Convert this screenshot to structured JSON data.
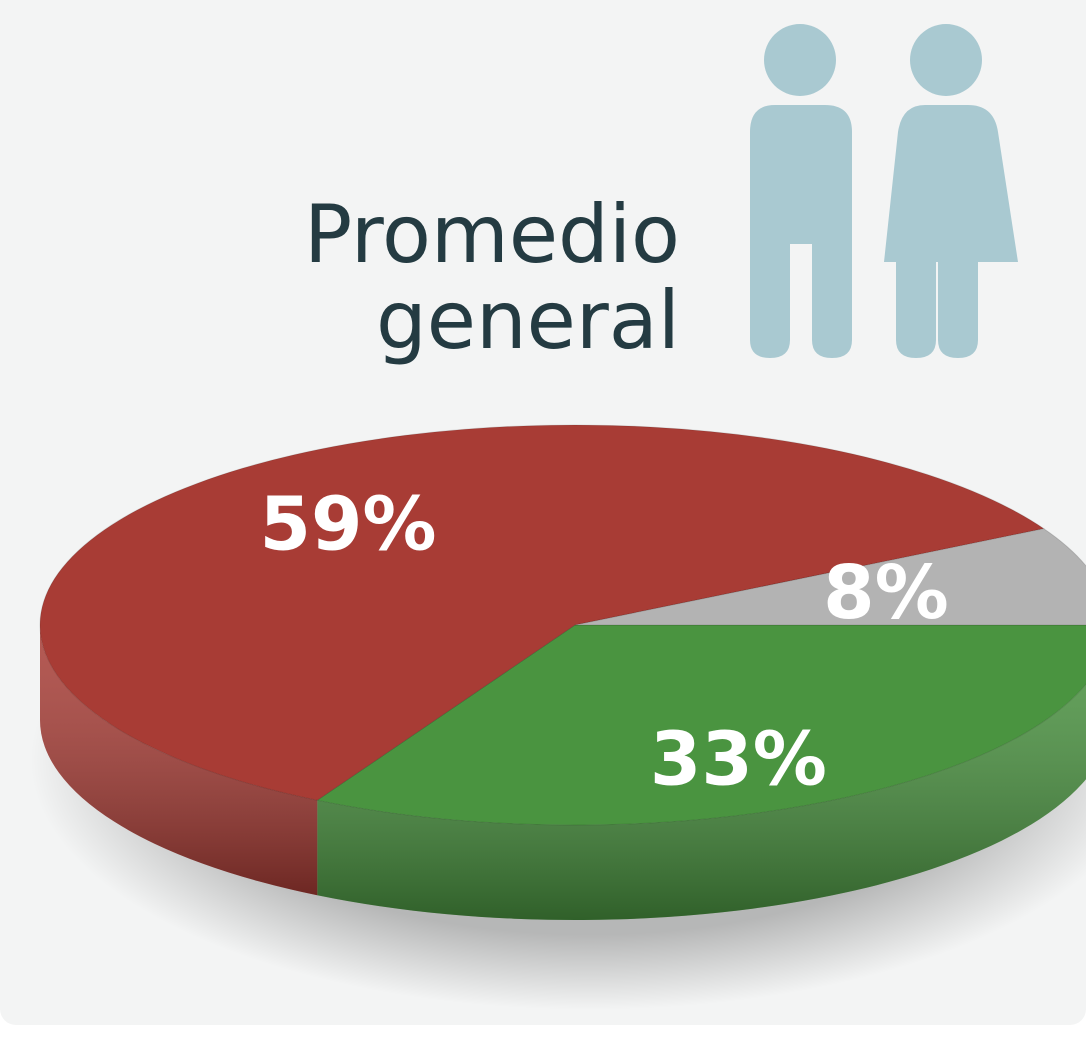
{
  "chart_data": {
    "type": "pie3d",
    "title": "Promedio general",
    "values": [
      33,
      59,
      8
    ],
    "value_labels": [
      "33%",
      "59%",
      "8%"
    ],
    "colors": [
      "#4a9440",
      "#a83c35",
      "#b3b3b3"
    ]
  }
}
